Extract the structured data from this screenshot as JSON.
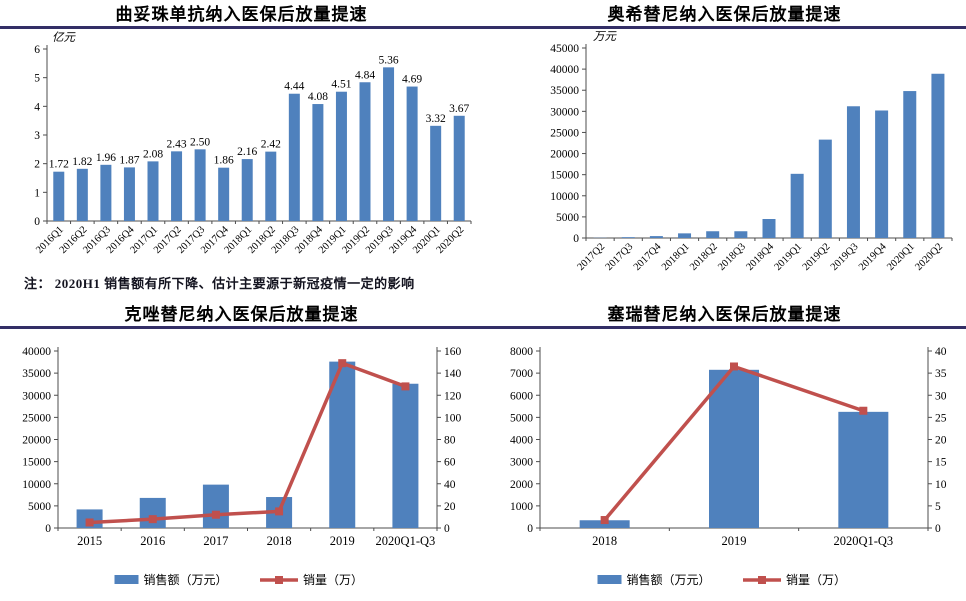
{
  "note": "注： 2020H1 销售额有所下降、估计主要源于新冠疫情一定的影响",
  "colors": {
    "bar": "#4F81BD",
    "line": "#C0504D",
    "underline": "#332E66",
    "axis": "#4d4d4d",
    "text": "#000000"
  },
  "chart_data": [
    {
      "type": "bar",
      "title": "曲妥珠单抗纳入医保后放量提速",
      "unit": "亿元",
      "categories": [
        "2016Q1",
        "2016Q2",
        "2016Q3",
        "2016Q4",
        "2017Q1",
        "2017Q2",
        "2017Q3",
        "2017Q4",
        "2018Q1",
        "2018Q2",
        "2018Q3",
        "2018Q4",
        "2019Q1",
        "2019Q2",
        "2019Q3",
        "2019Q4",
        "2020Q1",
        "2020Q2"
      ],
      "values": [
        1.72,
        1.82,
        1.96,
        1.87,
        2.08,
        2.43,
        2.5,
        1.86,
        2.16,
        2.42,
        4.44,
        4.08,
        4.51,
        4.84,
        5.36,
        4.69,
        3.32,
        3.67
      ],
      "data_labels": [
        "1.72",
        "1.82",
        "1.96",
        "1.87",
        "2.08",
        "2.43",
        "2.50",
        "1.86",
        "2.16",
        "2.42",
        "4.44",
        "4.08",
        "4.51",
        "4.84",
        "5.36",
        "4.69",
        "3.32",
        "3.67"
      ],
      "ylim": [
        0,
        6
      ],
      "ystep": 1,
      "grid": false,
      "x_tick_rotation": 45
    },
    {
      "type": "bar",
      "title": "奥希替尼纳入医保后放量提速",
      "unit": "万元",
      "categories": [
        "2017Q2",
        "2017Q3",
        "2017Q4",
        "2018Q1",
        "2018Q2",
        "2018Q3",
        "2018Q4",
        "2019Q1",
        "2019Q2",
        "2019Q3",
        "2019Q4",
        "2020Q1",
        "2020Q2"
      ],
      "values": [
        50,
        200,
        450,
        1100,
        1600,
        1600,
        4500,
        15200,
        23300,
        31200,
        30200,
        34800,
        38900
      ],
      "ylim": [
        0,
        45000
      ],
      "ystep": 5000,
      "grid": false,
      "x_tick_rotation": 45
    },
    {
      "type": "combo",
      "title": "克唑替尼纳入医保后放量提速",
      "categories": [
        "2015",
        "2016",
        "2017",
        "2018",
        "2019",
        "2020Q1-Q3"
      ],
      "series": [
        {
          "name": "销售额（万元）",
          "kind": "bar",
          "axis": "left",
          "values": [
            4200,
            6800,
            9800,
            7000,
            37600,
            32600
          ]
        },
        {
          "name": "销量（万）",
          "kind": "line",
          "axis": "right",
          "values": [
            5,
            8,
            12,
            15,
            149,
            128
          ]
        }
      ],
      "left_ylim": [
        0,
        40000
      ],
      "left_step": 5000,
      "right_ylim": [
        0,
        160
      ],
      "right_step": 20,
      "grid": false,
      "legend_position": "bottom"
    },
    {
      "type": "combo",
      "title": "塞瑞替尼纳入医保后放量提速",
      "categories": [
        "2018",
        "2019",
        "2020Q1-Q3"
      ],
      "series": [
        {
          "name": "销售额（万元）",
          "kind": "bar",
          "axis": "left",
          "values": [
            350,
            7150,
            5250
          ]
        },
        {
          "name": "销量（万）",
          "kind": "line",
          "axis": "right",
          "values": [
            1.8,
            36.5,
            26.5
          ]
        }
      ],
      "left_ylim": [
        0,
        8000
      ],
      "left_step": 1000,
      "right_ylim": [
        0,
        40
      ],
      "right_step": 5,
      "grid": false,
      "legend_position": "bottom"
    }
  ]
}
